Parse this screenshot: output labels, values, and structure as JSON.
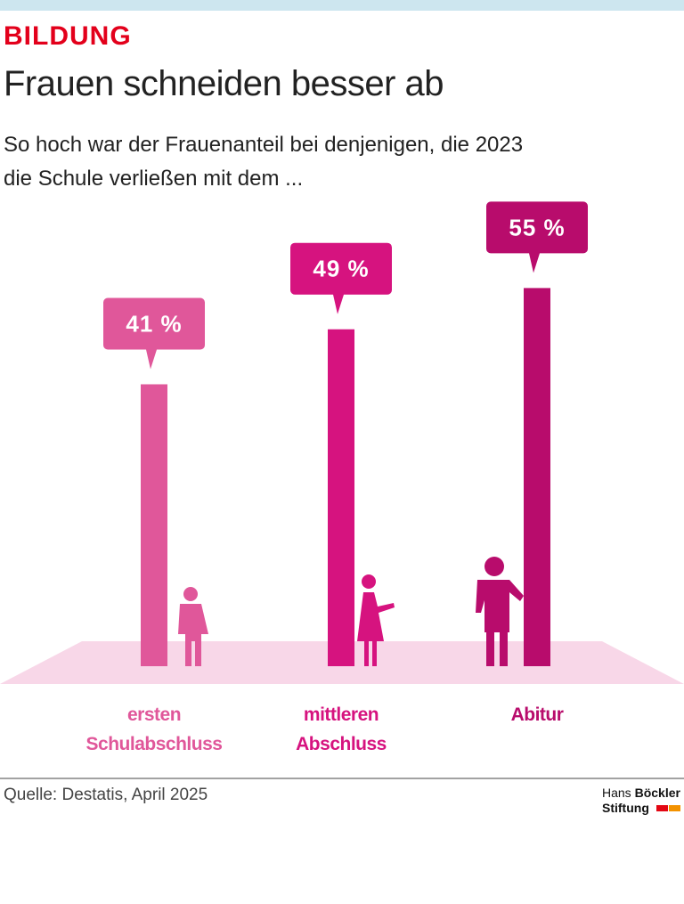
{
  "kicker": "BILDUNG",
  "chart_data": {
    "type": "bar",
    "title": "Frauen schneiden besser ab",
    "subtitle": [
      "So hoch war der Frauenanteil bei denjenigen, die 2023",
      "die Schule verließen mit dem ..."
    ],
    "categories": [
      "ersten Schulabschluss",
      "mittleren Abschluss",
      "Abitur"
    ],
    "values": [
      41,
      49,
      55
    ],
    "value_labels": [
      "41 %",
      "49 %",
      "55 %"
    ],
    "colors": [
      "#e0579a",
      "#d6137f",
      "#b80c6c"
    ]
  },
  "source": "Quelle: Destatis, April 2025",
  "logo": {
    "first": "Hans",
    "second": "Böckler",
    "third": "Stiftung"
  }
}
